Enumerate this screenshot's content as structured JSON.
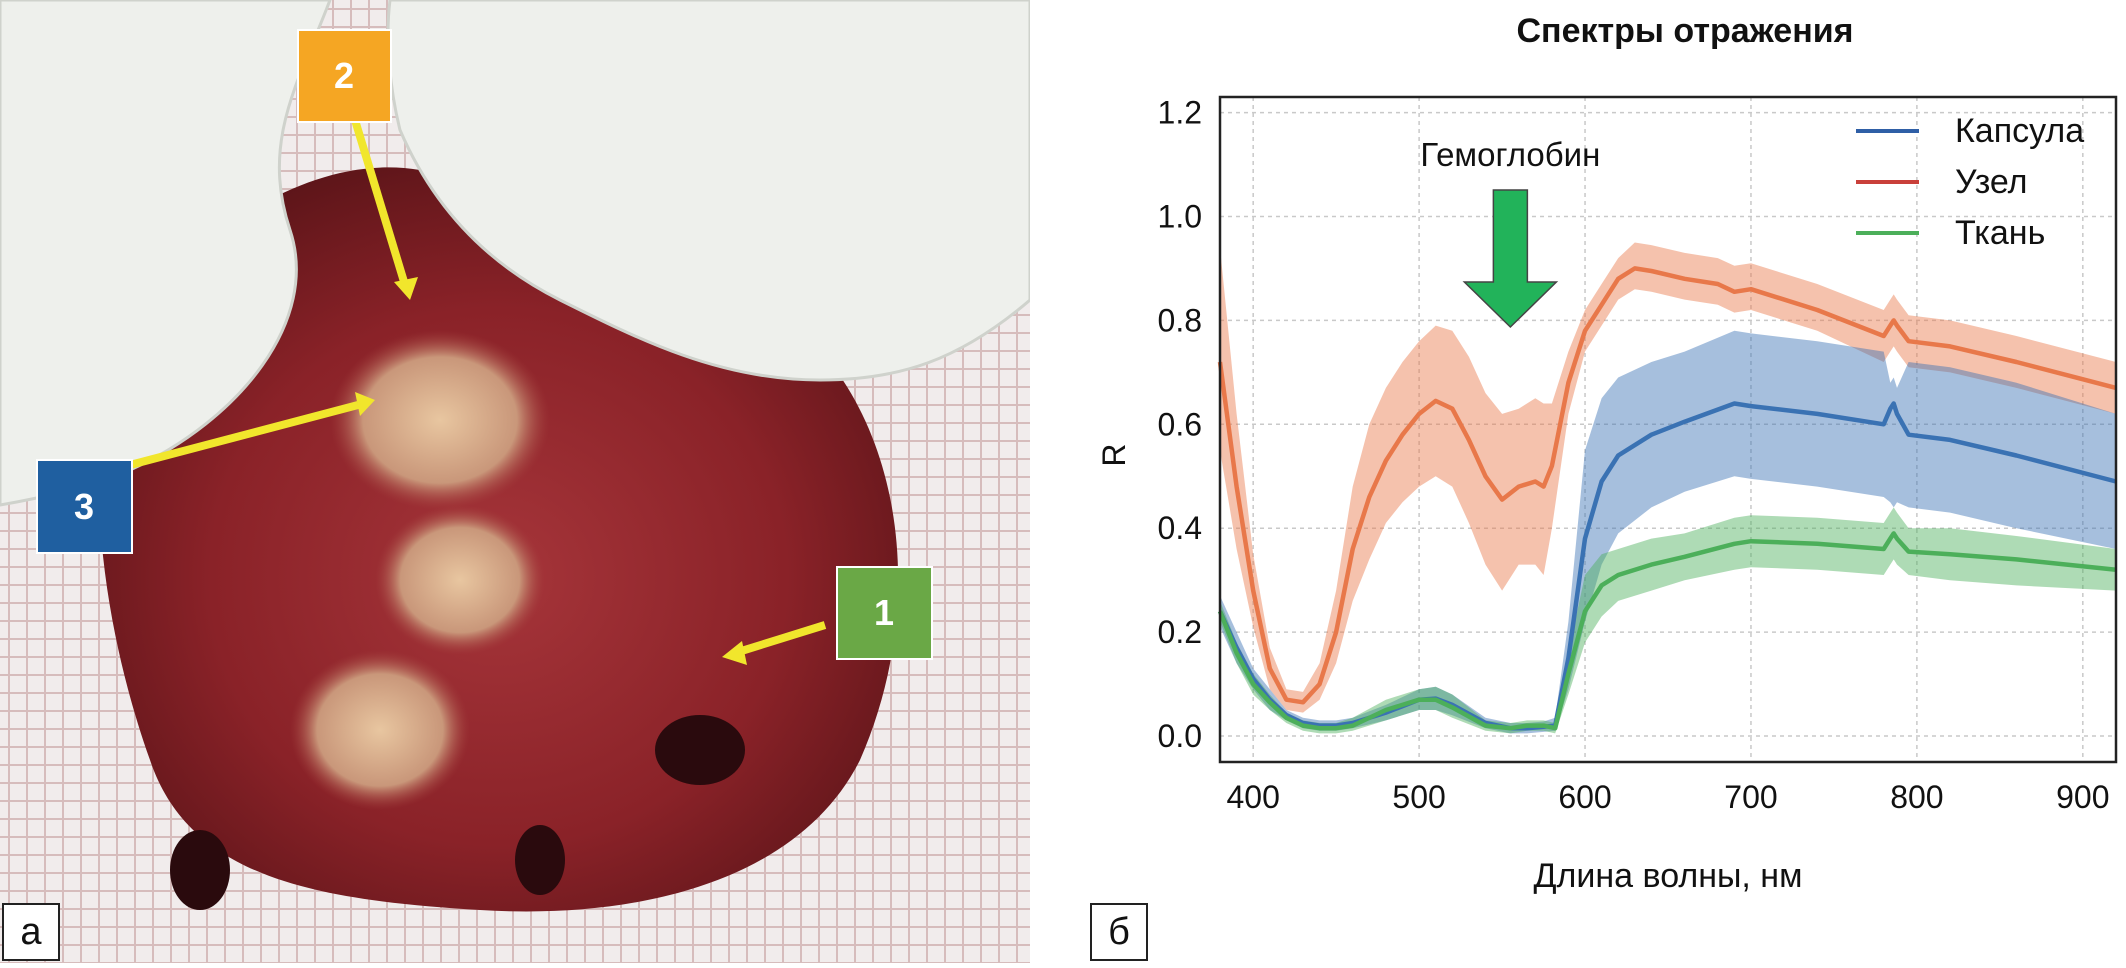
{
  "photo": {
    "panel_label": "а",
    "markers": [
      {
        "id": "1",
        "color": "#6aa846"
      },
      {
        "id": "2",
        "color": "#f5a623"
      },
      {
        "id": "3",
        "color": "#1f5fa0"
      }
    ]
  },
  "chart_panel_label": "б",
  "chart_data": {
    "type": "line",
    "title": "Спектры отражения",
    "xlabel": "Длина волны, нм",
    "ylabel": "R",
    "xlim": [
      380,
      920
    ],
    "ylim": [
      -0.05,
      1.23
    ],
    "xticks": [
      400,
      500,
      600,
      700,
      800,
      900
    ],
    "yticks": [
      "0.0",
      "0.2",
      "0.4",
      "0.6",
      "0.8",
      "1.0",
      "1.2"
    ],
    "grid": true,
    "legend_position": "top-right",
    "annotation": {
      "text": "Гемоглобин",
      "arrow_color": "#22b35a",
      "x": 555
    },
    "series": [
      {
        "name": "Капсула",
        "color": "#3a72b3",
        "x": [
          380,
          390,
          400,
          410,
          420,
          430,
          440,
          450,
          460,
          480,
          500,
          510,
          520,
          540,
          555,
          565,
          575,
          582,
          590,
          600,
          610,
          620,
          640,
          660,
          690,
          700,
          740,
          780,
          784,
          786,
          788,
          795,
          820,
          860,
          920
        ],
        "mean": [
          0.24,
          0.17,
          0.11,
          0.07,
          0.04,
          0.025,
          0.02,
          0.02,
          0.025,
          0.045,
          0.07,
          0.072,
          0.06,
          0.025,
          0.015,
          0.015,
          0.018,
          0.02,
          0.15,
          0.38,
          0.49,
          0.54,
          0.58,
          0.605,
          0.64,
          0.635,
          0.62,
          0.6,
          0.63,
          0.64,
          0.62,
          0.58,
          0.57,
          0.54,
          0.49
        ],
        "upper": [
          0.27,
          0.2,
          0.13,
          0.09,
          0.05,
          0.035,
          0.03,
          0.03,
          0.035,
          0.06,
          0.09,
          0.095,
          0.08,
          0.035,
          0.025,
          0.025,
          0.028,
          0.035,
          0.22,
          0.55,
          0.65,
          0.69,
          0.72,
          0.74,
          0.78,
          0.775,
          0.76,
          0.74,
          0.68,
          0.69,
          0.67,
          0.72,
          0.71,
          0.68,
          0.62
        ],
        "lower": [
          0.21,
          0.14,
          0.09,
          0.05,
          0.03,
          0.015,
          0.01,
          0.01,
          0.015,
          0.03,
          0.05,
          0.05,
          0.04,
          0.015,
          0.005,
          0.005,
          0.008,
          0.01,
          0.09,
          0.22,
          0.33,
          0.39,
          0.44,
          0.47,
          0.5,
          0.495,
          0.48,
          0.46,
          0.45,
          0.44,
          0.45,
          0.44,
          0.43,
          0.4,
          0.36
        ]
      },
      {
        "name": "Узел",
        "color": "#e8784a",
        "x": [
          380,
          390,
          400,
          410,
          420,
          430,
          440,
          450,
          460,
          470,
          480,
          490,
          500,
          510,
          520,
          530,
          540,
          550,
          560,
          570,
          575,
          580,
          590,
          600,
          610,
          620,
          630,
          640,
          660,
          680,
          690,
          700,
          740,
          780,
          784,
          786,
          788,
          795,
          820,
          860,
          920
        ],
        "mean": [
          0.72,
          0.48,
          0.28,
          0.13,
          0.07,
          0.065,
          0.1,
          0.2,
          0.36,
          0.46,
          0.53,
          0.58,
          0.62,
          0.645,
          0.63,
          0.57,
          0.5,
          0.455,
          0.48,
          0.49,
          0.48,
          0.52,
          0.68,
          0.78,
          0.83,
          0.88,
          0.9,
          0.895,
          0.88,
          0.87,
          0.855,
          0.86,
          0.82,
          0.77,
          0.79,
          0.8,
          0.79,
          0.76,
          0.75,
          0.72,
          0.67
        ],
        "upper": [
          0.94,
          0.62,
          0.35,
          0.17,
          0.09,
          0.085,
          0.14,
          0.28,
          0.48,
          0.6,
          0.67,
          0.72,
          0.76,
          0.79,
          0.78,
          0.73,
          0.66,
          0.62,
          0.63,
          0.65,
          0.64,
          0.64,
          0.74,
          0.82,
          0.87,
          0.92,
          0.95,
          0.945,
          0.93,
          0.92,
          0.905,
          0.91,
          0.87,
          0.82,
          0.84,
          0.85,
          0.84,
          0.81,
          0.8,
          0.77,
          0.72
        ],
        "lower": [
          0.55,
          0.36,
          0.21,
          0.09,
          0.05,
          0.045,
          0.07,
          0.14,
          0.26,
          0.34,
          0.41,
          0.45,
          0.48,
          0.5,
          0.48,
          0.41,
          0.33,
          0.28,
          0.33,
          0.33,
          0.31,
          0.4,
          0.62,
          0.74,
          0.79,
          0.84,
          0.86,
          0.855,
          0.84,
          0.83,
          0.815,
          0.82,
          0.78,
          0.72,
          0.74,
          0.75,
          0.74,
          0.71,
          0.7,
          0.67,
          0.62
        ]
      },
      {
        "name": "Ткань",
        "color": "#4caf5a",
        "x": [
          380,
          390,
          400,
          410,
          420,
          430,
          440,
          450,
          460,
          480,
          500,
          510,
          520,
          540,
          555,
          565,
          575,
          582,
          590,
          600,
          610,
          620,
          640,
          660,
          690,
          700,
          740,
          780,
          784,
          786,
          788,
          795,
          820,
          860,
          920
        ],
        "mean": [
          0.24,
          0.16,
          0.1,
          0.065,
          0.035,
          0.02,
          0.015,
          0.015,
          0.02,
          0.05,
          0.07,
          0.07,
          0.055,
          0.02,
          0.015,
          0.02,
          0.02,
          0.015,
          0.12,
          0.24,
          0.29,
          0.31,
          0.33,
          0.345,
          0.37,
          0.375,
          0.37,
          0.36,
          0.38,
          0.39,
          0.38,
          0.355,
          0.35,
          0.34,
          0.32
        ],
        "upper": [
          0.26,
          0.18,
          0.12,
          0.08,
          0.045,
          0.03,
          0.025,
          0.025,
          0.035,
          0.07,
          0.09,
          0.095,
          0.08,
          0.03,
          0.025,
          0.03,
          0.03,
          0.025,
          0.16,
          0.31,
          0.35,
          0.36,
          0.38,
          0.39,
          0.42,
          0.425,
          0.42,
          0.41,
          0.43,
          0.44,
          0.43,
          0.4,
          0.4,
          0.385,
          0.36
        ],
        "lower": [
          0.22,
          0.14,
          0.08,
          0.05,
          0.025,
          0.01,
          0.005,
          0.005,
          0.01,
          0.03,
          0.05,
          0.05,
          0.035,
          0.01,
          0.005,
          0.01,
          0.01,
          0.005,
          0.08,
          0.18,
          0.23,
          0.26,
          0.28,
          0.3,
          0.32,
          0.325,
          0.32,
          0.31,
          0.33,
          0.34,
          0.33,
          0.31,
          0.3,
          0.29,
          0.28
        ]
      }
    ]
  }
}
